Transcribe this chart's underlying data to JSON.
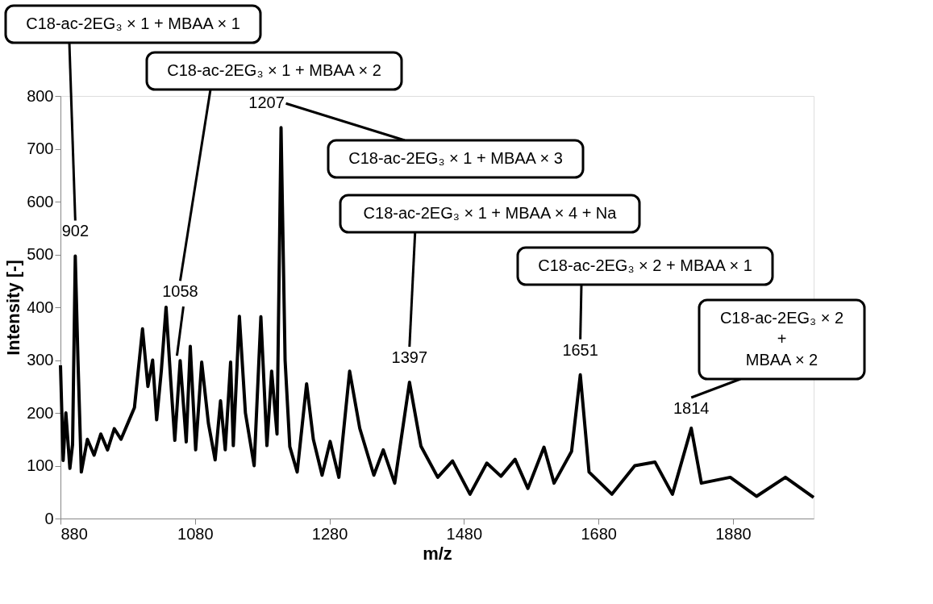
{
  "chart_data": {
    "type": "line",
    "xlabel": "m/z",
    "ylabel": "Intensity [-]",
    "x": [
      880,
      884,
      888,
      894,
      898,
      902,
      906,
      911,
      920,
      930,
      940,
      950,
      960,
      970,
      980,
      990,
      1002,
      1010,
      1017,
      1023,
      1030,
      1037,
      1044,
      1050,
      1058,
      1067,
      1073,
      1081,
      1090,
      1100,
      1110,
      1118,
      1125,
      1133,
      1137,
      1146,
      1155,
      1168,
      1178,
      1187,
      1194,
      1202,
      1208,
      1214,
      1221,
      1232,
      1246,
      1256,
      1269,
      1281,
      1294,
      1310,
      1325,
      1346,
      1360,
      1377,
      1399,
      1416,
      1441,
      1463,
      1489,
      1514,
      1535,
      1556,
      1575,
      1599,
      1614,
      1640,
      1653,
      1666,
      1700,
      1734,
      1764,
      1790,
      1818,
      1833,
      1876,
      1915,
      1958,
      2000
    ],
    "series": [
      {
        "color": "#000000",
        "values": [
          290,
          110,
          200,
          95,
          140,
          497,
          300,
          88,
          150,
          120,
          160,
          130,
          170,
          150,
          180,
          210,
          359,
          250,
          300,
          187,
          280,
          400,
          260,
          148,
          299,
          145,
          326,
          130,
          296,
          180,
          111,
          223,
          130,
          296,
          138,
          383,
          200,
          100,
          382,
          138,
          279,
          160,
          740,
          300,
          136,
          88,
          255,
          150,
          82,
          146,
          78,
          279,
          171,
          82,
          130,
          67,
          258,
          137,
          78,
          109,
          46,
          105,
          80,
          112,
          57,
          135,
          67,
          127,
          272,
          88,
          46,
          100,
          107,
          46,
          171,
          67,
          78,
          42,
          78,
          40
        ]
      }
    ],
    "xlim": [
      880,
      2000
    ],
    "ylim": [
      0,
      800
    ],
    "xticks": [
      880,
      1080,
      1280,
      1480,
      1680,
      1880
    ],
    "yticks": [
      0,
      100,
      200,
      300,
      400,
      500,
      600,
      700,
      800
    ],
    "grid": false,
    "marker": "none",
    "line_style": "solid",
    "annotations": [
      {
        "text": "902",
        "x": 902,
        "y": 497
      },
      {
        "text": "1058",
        "x": 1058,
        "y": 299
      },
      {
        "text": "1207",
        "x": 1208,
        "y": 740
      },
      {
        "text": "1397",
        "x": 1399,
        "y": 258
      },
      {
        "text": "1651",
        "x": 1653,
        "y": 272
      },
      {
        "text": "1814",
        "x": 1818,
        "y": 171
      },
      "C18-ac-2EG₃ × 1 + MBAA × 1",
      "C18-ac-2EG₃ × 1 + MBAA × 2",
      "C18-ac-2EG₃ × 1 + MBAA × 3",
      "C18-ac-2EG₃ × 1 + MBAA × 4 + Na",
      "C18-ac-2EG₃ × 2 + MBAA × 1",
      "C18-ac-2EG₃ × 2 + MBAA × 2"
    ]
  }
}
